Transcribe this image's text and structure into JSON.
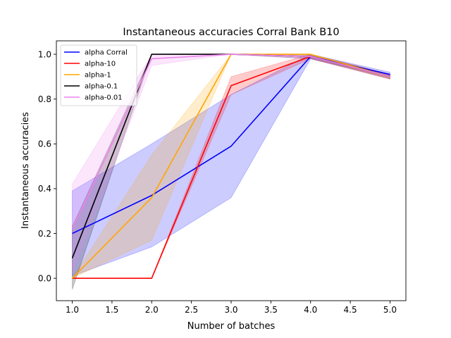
{
  "chart_data": {
    "type": "line",
    "title": "Instantaneous accuracies Corral Bank B10",
    "xlabel": "Number of batches",
    "ylabel": "Instantaneous accuracies",
    "xlim": [
      0.8,
      5.2
    ],
    "ylim": [
      -0.1,
      1.06
    ],
    "xticks": [
      1.0,
      1.5,
      2.0,
      2.5,
      3.0,
      3.5,
      4.0,
      4.5,
      5.0
    ],
    "xtick_labels": [
      "1.0",
      "1.5",
      "2.0",
      "2.5",
      "3.0",
      "3.5",
      "4.0",
      "4.5",
      "5.0"
    ],
    "yticks": [
      0.0,
      0.2,
      0.4,
      0.6,
      0.8,
      1.0
    ],
    "ytick_labels": [
      "0.0",
      "0.2",
      "0.4",
      "0.6",
      "0.8",
      "1.0"
    ],
    "grid": false,
    "legend_position": "top-left",
    "series": [
      {
        "name": "alpha Corral",
        "color": "#0000ff",
        "x": [
          1,
          2,
          3,
          4,
          5
        ],
        "y": [
          0.2,
          0.37,
          0.59,
          0.99,
          0.91
        ],
        "lower": [
          0.01,
          0.14,
          0.36,
          0.98,
          0.9
        ],
        "upper": [
          0.39,
          0.6,
          0.82,
          1.0,
          0.92
        ]
      },
      {
        "name": "alpha-10",
        "color": "#ff0000",
        "x": [
          1,
          2,
          3,
          4,
          5
        ],
        "y": [
          0.0,
          0.0,
          0.86,
          0.99,
          0.9
        ],
        "lower": [
          0.0,
          0.0,
          0.82,
          0.98,
          0.89
        ],
        "upper": [
          0.0,
          0.0,
          0.9,
          1.0,
          0.91
        ]
      },
      {
        "name": "alpha-1",
        "color": "#ffa500",
        "x": [
          1,
          2,
          3,
          4,
          5
        ],
        "y": [
          0.0,
          0.36,
          1.0,
          1.0,
          0.9
        ],
        "lower": [
          0.0,
          0.17,
          1.0,
          0.99,
          0.89
        ],
        "upper": [
          0.0,
          0.55,
          1.0,
          1.0,
          0.91
        ]
      },
      {
        "name": "alpha-0.1",
        "color": "#000000",
        "x": [
          1,
          2,
          3,
          4,
          5
        ],
        "y": [
          0.09,
          1.0,
          1.0,
          0.99,
          0.9
        ],
        "lower": [
          -0.05,
          1.0,
          1.0,
          0.98,
          0.89
        ],
        "upper": [
          0.23,
          1.0,
          1.0,
          1.0,
          0.91
        ]
      },
      {
        "name": "alpha-0.01",
        "color": "#ee82ee",
        "x": [
          1,
          2,
          3,
          4,
          5
        ],
        "y": [
          0.22,
          0.98,
          1.0,
          0.99,
          0.9
        ],
        "lower": [
          0.02,
          0.95,
          1.0,
          0.98,
          0.89
        ],
        "upper": [
          0.42,
          1.0,
          1.0,
          1.0,
          0.91
        ]
      }
    ]
  }
}
